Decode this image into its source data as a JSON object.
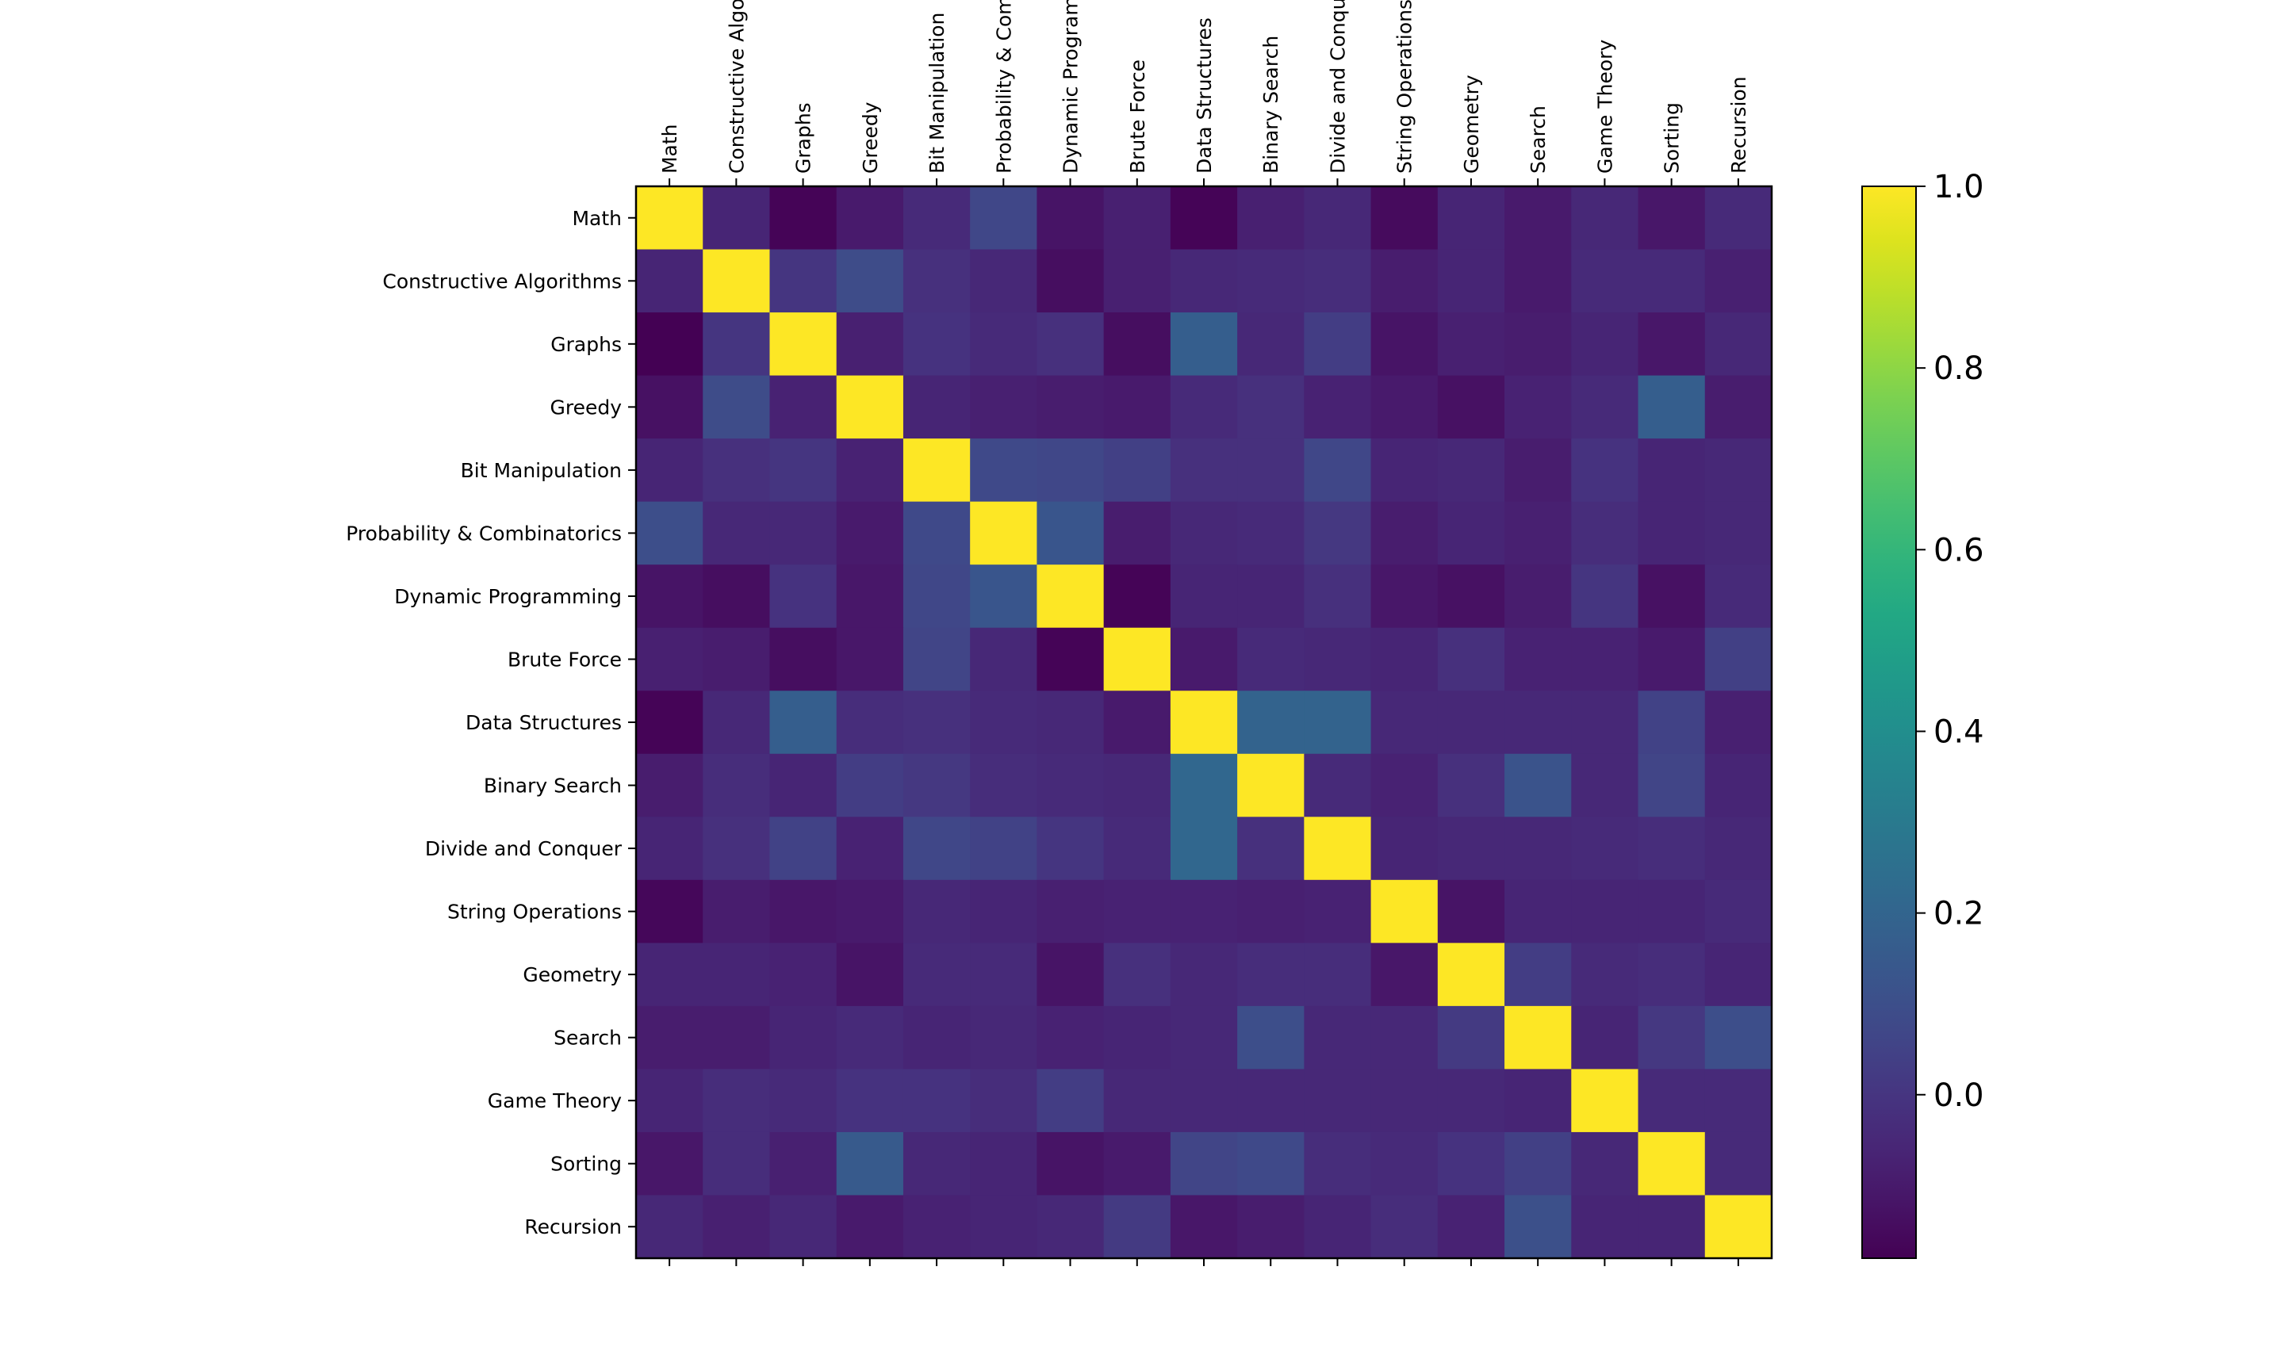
{
  "chart_data": {
    "type": "heatmap",
    "title": "",
    "xlabel": "",
    "ylabel": "",
    "colormap": "viridis",
    "x_tick_position": "top",
    "x_tick_rotation": "vertical",
    "labels": [
      "Math",
      "Constructive Algorithms",
      "Graphs",
      "Greedy",
      "Bit Manipulation",
      "Probability & Combinatorics",
      "Dynamic Programming",
      "Brute Force",
      "Data Structures",
      "Binary Search",
      "Divide and Conquer",
      "String Operations",
      "Geometry",
      "Search",
      "Game Theory",
      "Sorting",
      "Recursion"
    ],
    "matrix": [
      [
        1.0,
        -0.06,
        -0.17,
        -0.1,
        -0.04,
        0.07,
        -0.12,
        -0.08,
        -0.17,
        -0.08,
        -0.05,
        -0.15,
        -0.06,
        -0.1,
        -0.05,
        -0.11,
        -0.04
      ],
      [
        -0.06,
        1.0,
        0.0,
        0.09,
        -0.02,
        -0.05,
        -0.14,
        -0.08,
        -0.05,
        -0.04,
        -0.03,
        -0.09,
        -0.06,
        -0.1,
        -0.04,
        -0.04,
        -0.08
      ],
      [
        -0.18,
        0.0,
        1.0,
        -0.08,
        -0.01,
        -0.04,
        -0.02,
        -0.14,
        0.17,
        -0.05,
        0.03,
        -0.12,
        -0.08,
        -0.09,
        -0.06,
        -0.11,
        -0.05
      ],
      [
        -0.13,
        0.09,
        -0.07,
        1.0,
        -0.06,
        -0.08,
        -0.09,
        -0.1,
        -0.04,
        -0.02,
        -0.07,
        -0.1,
        -0.13,
        -0.07,
        -0.04,
        0.17,
        -0.09
      ],
      [
        -0.06,
        -0.02,
        0.0,
        -0.07,
        1.0,
        0.08,
        0.07,
        0.04,
        -0.02,
        -0.02,
        0.07,
        -0.06,
        -0.05,
        -0.09,
        -0.01,
        -0.06,
        -0.05
      ],
      [
        0.1,
        -0.05,
        -0.05,
        -0.1,
        0.08,
        1.0,
        0.13,
        -0.09,
        -0.05,
        -0.04,
        0.01,
        -0.09,
        -0.06,
        -0.08,
        -0.03,
        -0.06,
        -0.05
      ],
      [
        -0.12,
        -0.14,
        -0.01,
        -0.11,
        0.07,
        0.13,
        1.0,
        -0.17,
        -0.06,
        -0.06,
        -0.02,
        -0.11,
        -0.13,
        -0.09,
        0.0,
        -0.13,
        -0.04
      ],
      [
        -0.08,
        -0.09,
        -0.14,
        -0.11,
        0.06,
        -0.05,
        -0.17,
        1.0,
        -0.1,
        -0.04,
        -0.05,
        -0.06,
        -0.02,
        -0.07,
        -0.07,
        -0.1,
        0.04
      ],
      [
        -0.17,
        -0.05,
        0.17,
        -0.03,
        -0.02,
        -0.04,
        -0.05,
        -0.1,
        1.0,
        0.19,
        0.19,
        -0.05,
        -0.05,
        -0.05,
        -0.05,
        0.05,
        -0.08
      ],
      [
        -0.09,
        -0.03,
        -0.06,
        0.03,
        0.01,
        -0.03,
        -0.04,
        -0.05,
        0.21,
        1.0,
        -0.04,
        -0.07,
        -0.02,
        0.12,
        -0.05,
        0.06,
        -0.06
      ],
      [
        -0.06,
        -0.02,
        0.05,
        -0.07,
        0.07,
        0.05,
        0.0,
        -0.04,
        0.21,
        -0.02,
        1.0,
        -0.06,
        -0.05,
        -0.05,
        -0.04,
        -0.03,
        -0.05
      ],
      [
        -0.16,
        -0.09,
        -0.11,
        -0.1,
        -0.05,
        -0.06,
        -0.08,
        -0.07,
        -0.07,
        -0.08,
        -0.07,
        1.0,
        -0.12,
        -0.06,
        -0.06,
        -0.06,
        -0.04
      ],
      [
        -0.06,
        -0.06,
        -0.07,
        -0.12,
        -0.04,
        -0.04,
        -0.12,
        -0.02,
        -0.05,
        -0.03,
        -0.03,
        -0.11,
        1.0,
        0.03,
        -0.04,
        -0.03,
        -0.06
      ],
      [
        -0.09,
        -0.09,
        -0.06,
        -0.04,
        -0.06,
        -0.05,
        -0.07,
        -0.06,
        -0.05,
        0.1,
        -0.05,
        -0.05,
        0.02,
        1.0,
        -0.06,
        0.01,
        0.1
      ],
      [
        -0.06,
        -0.03,
        -0.04,
        -0.01,
        -0.01,
        -0.03,
        0.03,
        -0.05,
        -0.05,
        -0.05,
        -0.05,
        -0.05,
        -0.05,
        -0.06,
        1.0,
        -0.04,
        -0.04
      ],
      [
        -0.11,
        -0.03,
        -0.08,
        0.15,
        -0.05,
        -0.06,
        -0.12,
        -0.1,
        0.06,
        0.08,
        -0.03,
        -0.04,
        -0.01,
        0.04,
        -0.05,
        1.0,
        -0.04
      ],
      [
        -0.05,
        -0.08,
        -0.05,
        -0.1,
        -0.07,
        -0.06,
        -0.05,
        0.02,
        -0.11,
        -0.09,
        -0.06,
        -0.03,
        -0.07,
        0.11,
        -0.06,
        -0.06,
        1.0
      ]
    ],
    "colorbar": {
      "vmin": -0.18,
      "vmax": 1.0,
      "ticks": [
        "0.0",
        "0.2",
        "0.4",
        "0.6",
        "0.8",
        "1.0"
      ],
      "tick_values": [
        0.0,
        0.2,
        0.4,
        0.6,
        0.8,
        1.0
      ]
    }
  }
}
